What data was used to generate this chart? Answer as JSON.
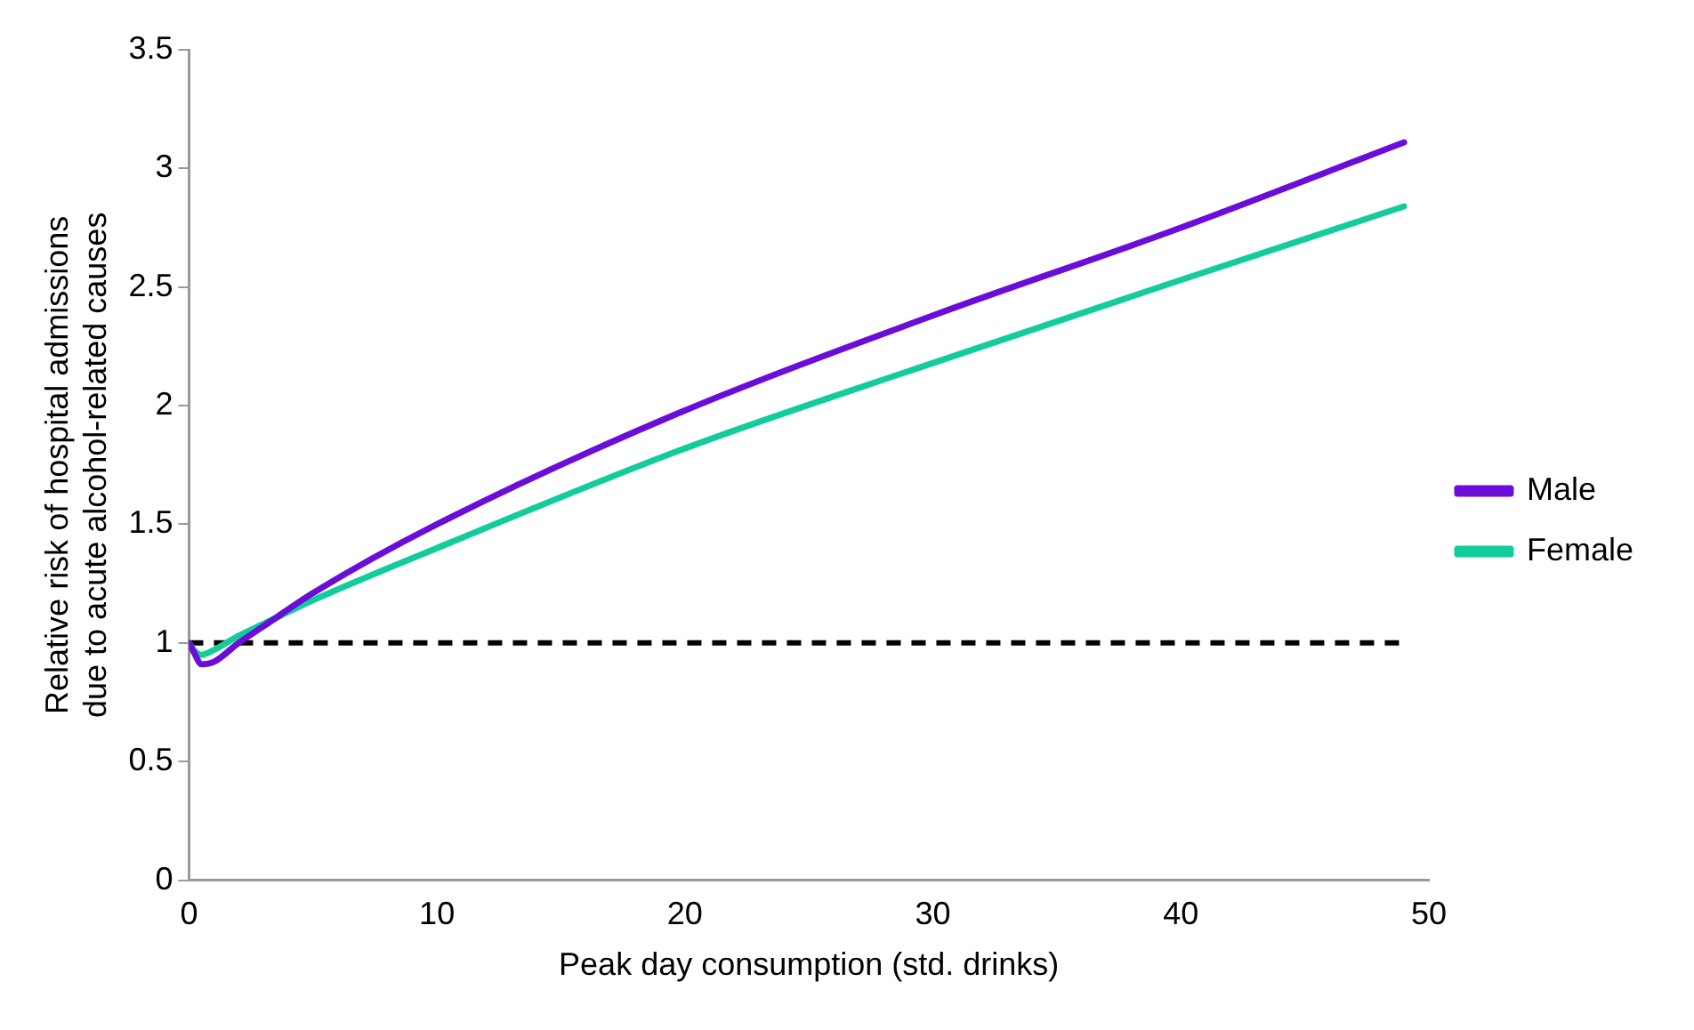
{
  "chart_data": {
    "type": "line",
    "xlabel": "Peak day consumption (std. drinks)",
    "ylabel": "Relative risk of hospital admissions due to acute alcohol-related causes",
    "xlim": [
      0,
      50
    ],
    "xticks": [
      0,
      10,
      20,
      30,
      40,
      50
    ],
    "ylim": [
      0,
      3.5
    ],
    "yticks": [
      0,
      0.5,
      1,
      1.5,
      2,
      2.5,
      3,
      3.5
    ],
    "grid": false,
    "legend": "right",
    "marker": "none",
    "line_style": "solid",
    "series": [
      {
        "name": "Male",
        "color": "#6a0dd8",
        "x": [
          0,
          0.2,
          0.5,
          1,
          2,
          3,
          5,
          10,
          20,
          30,
          40,
          49
        ],
        "values": [
          1.0,
          0.96,
          0.91,
          0.92,
          1.0,
          1.07,
          1.21,
          1.5,
          1.98,
          2.38,
          2.75,
          3.11
        ]
      },
      {
        "name": "Female",
        "color": "#12cc9c",
        "x": [
          0,
          0.2,
          0.5,
          1,
          2,
          3,
          5,
          10,
          20,
          30,
          40,
          49
        ],
        "values": [
          1.0,
          0.97,
          0.95,
          0.97,
          1.03,
          1.08,
          1.18,
          1.4,
          1.82,
          2.18,
          2.53,
          2.84
        ]
      }
    ],
    "ref_lines": [
      {
        "axis": "y",
        "value": 1,
        "color": "#000000",
        "line_style": "dashed"
      }
    ]
  }
}
